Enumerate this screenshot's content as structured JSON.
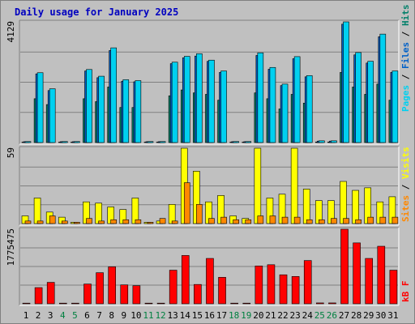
{
  "title": "Daily usage for January 2025",
  "colors": {
    "background": "#c0c0c0",
    "title": "#0000c0",
    "pages": "#00806a",
    "files": "#0060c8",
    "hits": "#00d0f0",
    "visits": "#ff8800",
    "sites": "#ffff00",
    "kbf": "#ff0000",
    "weekend_day": "#008040",
    "weekday_day": "#000000"
  },
  "chart_data": [
    {
      "type": "bar",
      "panel": "hits",
      "ymax_label": "4129",
      "ylim": [
        0,
        4129
      ],
      "legend": [
        "Pages",
        "Files",
        "Hits"
      ],
      "categories": [
        "1",
        "2",
        "3",
        "4",
        "5",
        "6",
        "7",
        "8",
        "9",
        "10",
        "11",
        "12",
        "13",
        "14",
        "15",
        "16",
        "17",
        "18",
        "19",
        "20",
        "21",
        "22",
        "23",
        "24",
        "25",
        "26",
        "27",
        "28",
        "29",
        "30",
        "31"
      ],
      "weekend_days": [
        "4",
        "5",
        "11",
        "12",
        "18",
        "19",
        "25",
        "26"
      ],
      "series": [
        {
          "name": "Hits",
          "values": [
            35,
            2390,
            1840,
            35,
            35,
            2500,
            2270,
            3240,
            2150,
            2120,
            35,
            35,
            2750,
            2950,
            3040,
            2820,
            2450,
            35,
            35,
            3070,
            2570,
            2000,
            2940,
            2290,
            60,
            60,
            4129,
            3080,
            2780,
            3710,
            2450
          ]
        },
        {
          "name": "Files",
          "values": [
            30,
            2350,
            1780,
            30,
            30,
            2450,
            2220,
            3150,
            2100,
            2080,
            30,
            30,
            2700,
            2900,
            2960,
            2780,
            2400,
            30,
            30,
            2980,
            2510,
            1950,
            2870,
            2250,
            50,
            50,
            4050,
            3000,
            2720,
            3620,
            2400
          ]
        },
        {
          "name": "Pages",
          "values": [
            15,
            1500,
            1300,
            15,
            15,
            1500,
            1400,
            1900,
            1200,
            1200,
            15,
            15,
            1600,
            1800,
            1700,
            1650,
            1450,
            15,
            15,
            1700,
            1500,
            1150,
            1650,
            1350,
            20,
            20,
            2400,
            1900,
            1650,
            2000,
            1450
          ]
        }
      ]
    },
    {
      "type": "bar",
      "panel": "visits",
      "ymax_label": "59",
      "ylim": [
        0,
        59
      ],
      "legend": [
        "Sites",
        "Visits"
      ],
      "series": [
        {
          "name": "Sites",
          "values": [
            6,
            20,
            9,
            5,
            1,
            17,
            16,
            13,
            11,
            20,
            1,
            2,
            15,
            59,
            41,
            17,
            22,
            6,
            4,
            59,
            20,
            23,
            59,
            27,
            18,
            18,
            33,
            26,
            28,
            17,
            21
          ]
        },
        {
          "name": "Visits",
          "values": [
            2,
            2,
            6,
            2,
            1,
            4,
            2,
            3,
            3,
            3,
            1,
            4,
            2,
            32,
            15,
            4,
            5,
            3,
            3,
            6,
            6,
            5,
            5,
            3,
            3,
            4,
            4,
            3,
            5,
            5,
            5
          ]
        }
      ]
    },
    {
      "type": "bar",
      "panel": "kbf",
      "ymax_label": "1775475",
      "ylim": [
        0,
        1775475
      ],
      "legend": [
        "kB F"
      ],
      "series": [
        {
          "name": "kB F",
          "values": [
            15000,
            385000,
            510000,
            15000,
            15000,
            470000,
            740000,
            880000,
            450000,
            430000,
            15000,
            15000,
            800000,
            1150000,
            460000,
            1080000,
            630000,
            15000,
            15000,
            900000,
            930000,
            690000,
            650000,
            1030000,
            20000,
            20000,
            1775475,
            1450000,
            1080000,
            1370000,
            800000
          ]
        }
      ]
    }
  ]
}
